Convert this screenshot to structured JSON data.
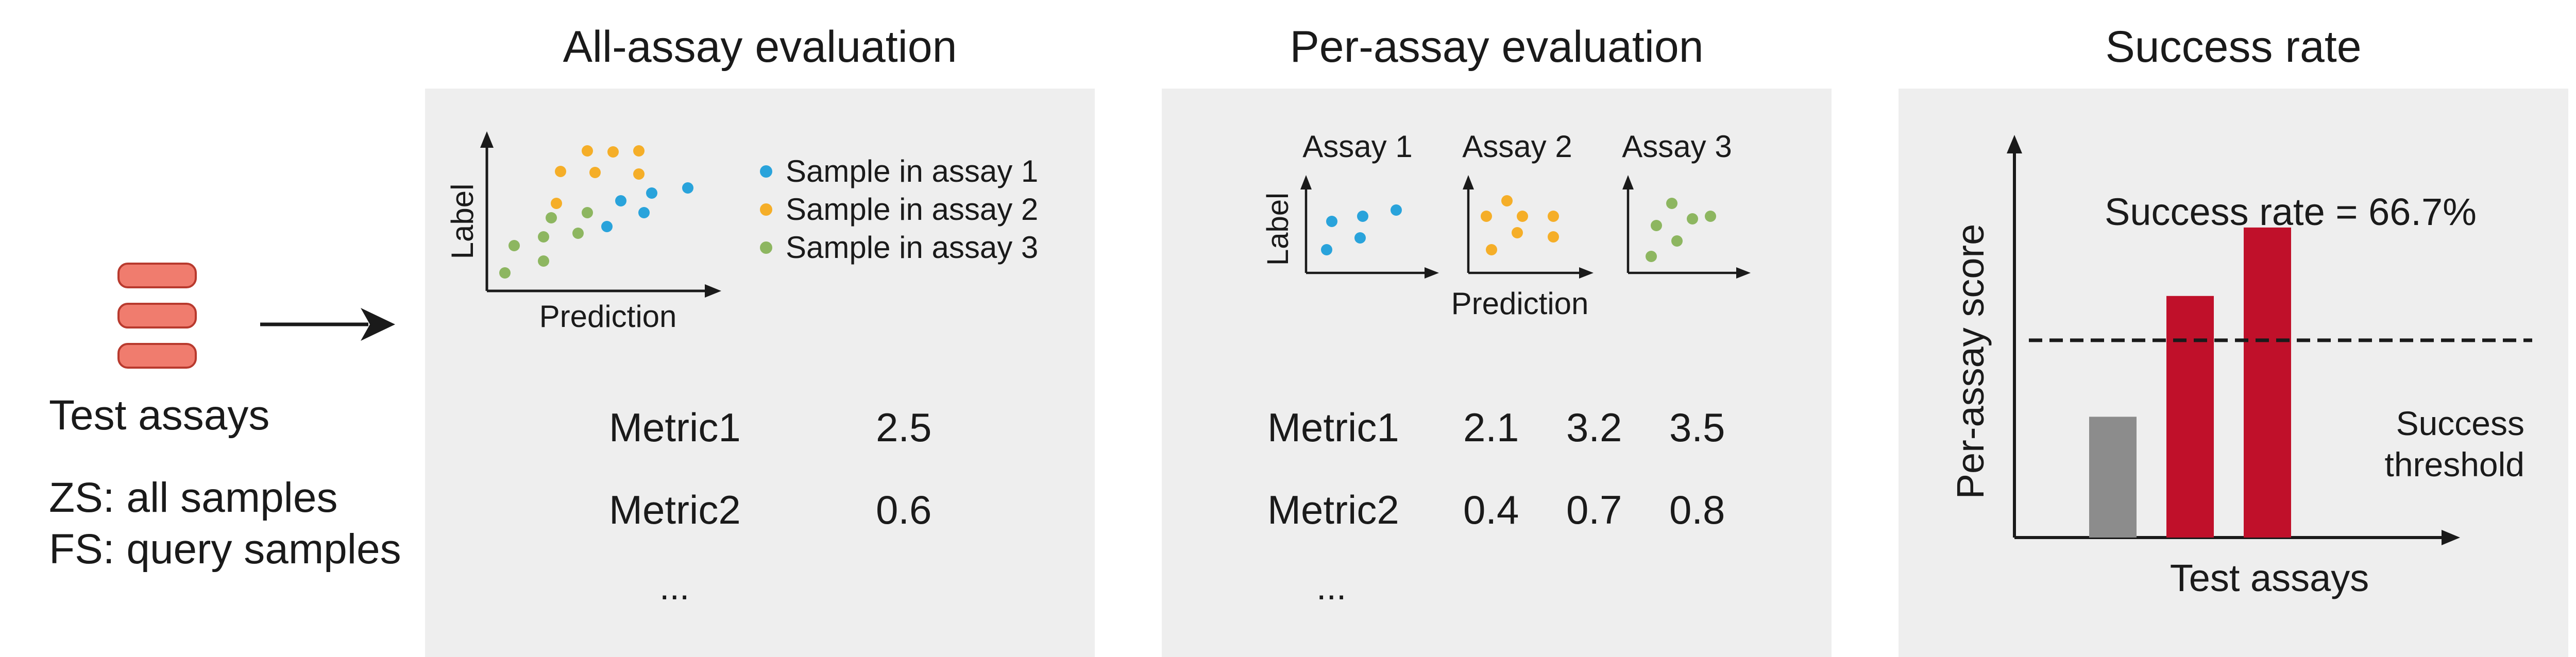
{
  "left": {
    "label": "Test assays",
    "zs_line": "ZS: all samples",
    "fs_line": "FS: query samples",
    "icon": "stacked-pills-icon",
    "pill_color": "#f07c6e",
    "pill_border": "#b83a2e"
  },
  "all_assay": {
    "title": "All-assay evaluation",
    "ylabel": "Label",
    "xlabel": "Prediction",
    "legend": [
      {
        "label": "Sample in assay 1",
        "color": "#29a3db"
      },
      {
        "label": "Sample in assay 2",
        "color": "#f5ae28"
      },
      {
        "label": "Sample in assay 3",
        "color": "#8db660"
      }
    ],
    "metrics": [
      {
        "name": "Metric1",
        "value": "2.5"
      },
      {
        "name": "Metric2",
        "value": "0.6"
      }
    ],
    "ellipsis": "..."
  },
  "per_assay": {
    "title": "Per-assay evaluation",
    "assays": [
      "Assay 1",
      "Assay 2",
      "Assay 3"
    ],
    "ylabel": "Label",
    "xlabel": "Prediction",
    "metrics": [
      {
        "name": "Metric1",
        "values": [
          "2.1",
          "3.2",
          "3.5"
        ]
      },
      {
        "name": "Metric2",
        "values": [
          "0.4",
          "0.7",
          "0.8"
        ]
      }
    ],
    "ellipsis": "..."
  },
  "success": {
    "title": "Success rate",
    "rate_text": "Success rate = 66.7%",
    "ylabel": "Per-assay score",
    "xlabel": "Test assays",
    "threshold_line1": "Success",
    "threshold_line2": "threshold",
    "colors": {
      "fail": "#8c8c8c",
      "pass": "#c0102a"
    },
    "chart_data": {
      "type": "bar",
      "values": [
        0.3,
        0.6,
        0.77
      ],
      "threshold": 0.49,
      "passed": [
        false,
        true,
        true
      ]
    }
  }
}
